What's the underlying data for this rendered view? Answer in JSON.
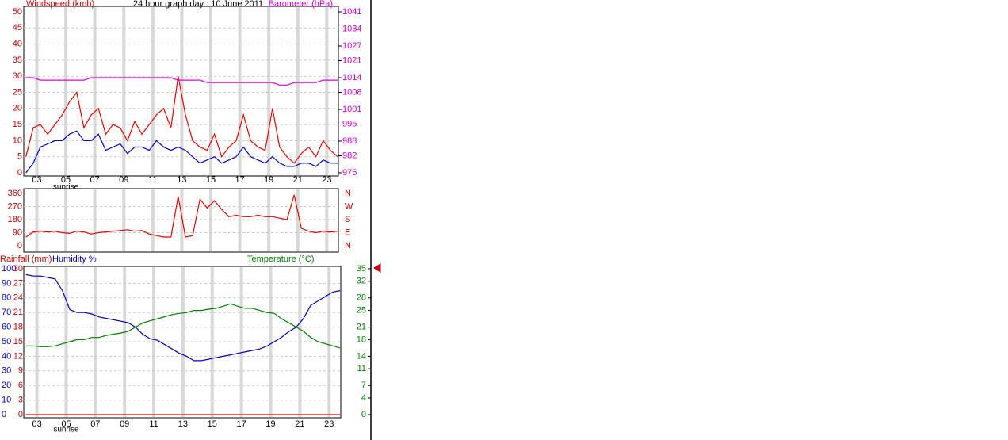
{
  "chart_data": [
    {
      "type": "line",
      "title": "24 hour graph day : 10 June 2011",
      "annotation": "sunrise",
      "x": [
        2.25,
        2.75,
        3.25,
        3.75,
        4.25,
        4.75,
        5.25,
        5.75,
        6.25,
        6.75,
        7.25,
        7.75,
        8.25,
        8.75,
        9.25,
        9.75,
        10.25,
        10.75,
        11.25,
        11.75,
        12.25,
        12.75,
        13.25,
        13.75,
        14.25,
        14.75,
        15.25,
        15.75,
        16.25,
        16.75,
        17.25,
        17.75,
        18.25,
        18.75,
        19.25,
        19.75,
        20.25,
        20.75,
        21.25,
        21.75,
        22.25,
        22.75,
        23.25,
        23.75
      ],
      "xlim": [
        2.1,
        23.8
      ],
      "xticks": [
        {
          "value": 3,
          "label": "03"
        },
        {
          "value": 5,
          "label": "05"
        },
        {
          "value": 7,
          "label": "07"
        },
        {
          "value": 9,
          "label": "09"
        },
        {
          "value": 11,
          "label": "11"
        },
        {
          "value": 13,
          "label": "13"
        },
        {
          "value": 15,
          "label": "15"
        },
        {
          "value": 17,
          "label": "17"
        },
        {
          "value": 19,
          "label": "19"
        },
        {
          "value": 21,
          "label": "21"
        },
        {
          "value": 23,
          "label": "23"
        }
      ],
      "axes": [
        {
          "label": "Windspeed (kmh)",
          "color": "#cc0000",
          "lim": [
            0,
            50
          ],
          "ticks": [
            0,
            5,
            10,
            15,
            20,
            25,
            30,
            35,
            40,
            45,
            50
          ]
        },
        {
          "label": "Barometer (hPa)",
          "color": "#cc00cc",
          "lim": [
            975,
            1041
          ],
          "ticks": [
            975,
            982,
            988,
            995,
            1001,
            1008,
            1014,
            1021,
            1027,
            1034,
            1041
          ]
        }
      ],
      "grid": true,
      "series": [
        {
          "color": "#ee0000",
          "axis": 0,
          "values": [
            5,
            14,
            15,
            12,
            15,
            18,
            22,
            25,
            14,
            18,
            20,
            12,
            15,
            14,
            10,
            16,
            12,
            15,
            18,
            20,
            14,
            30,
            18,
            10,
            8,
            7,
            12,
            5,
            8,
            10,
            18,
            10,
            8,
            7,
            20,
            8,
            5,
            3,
            6,
            8,
            5,
            10,
            7,
            5
          ]
        },
        {
          "color": "#0000cc",
          "axis": 0,
          "values": [
            0,
            3,
            8,
            9,
            10,
            10,
            12,
            13,
            10,
            10,
            12,
            7,
            8,
            9,
            6,
            8,
            8,
            7,
            10,
            8,
            7,
            8,
            7,
            5,
            3,
            4,
            5,
            3,
            4,
            5,
            8,
            5,
            4,
            3,
            5,
            3,
            2,
            2,
            3,
            3,
            2,
            4,
            3,
            3
          ]
        },
        {
          "color": "#dd00dd",
          "axis": 1,
          "values": [
            1014,
            1014,
            1013,
            1013,
            1013,
            1013,
            1013,
            1013,
            1013,
            1014,
            1014,
            1014,
            1014,
            1014,
            1014,
            1014,
            1014,
            1014,
            1014,
            1014,
            1014,
            1013,
            1013,
            1013,
            1013,
            1012,
            1012,
            1012,
            1012,
            1012,
            1012,
            1012,
            1012,
            1012,
            1012,
            1011,
            1011,
            1012,
            1012,
            1012,
            1012,
            1013,
            1013,
            1013
          ]
        }
      ]
    },
    {
      "type": "line",
      "x": [
        2.25,
        2.75,
        3.25,
        3.75,
        4.25,
        4.75,
        5.25,
        5.75,
        6.25,
        6.75,
        7.25,
        7.75,
        8.25,
        8.75,
        9.25,
        9.75,
        10.25,
        10.75,
        11.25,
        11.75,
        12.25,
        12.75,
        13.25,
        13.75,
        14.25,
        14.75,
        15.25,
        15.75,
        16.25,
        16.75,
        17.25,
        17.75,
        18.25,
        18.75,
        19.25,
        19.75,
        20.25,
        20.75,
        21.25,
        21.75,
        22.25,
        22.75,
        23.25,
        23.75
      ],
      "xlim": [
        2.1,
        23.8
      ],
      "axes": [
        {
          "color": "#cc0000",
          "lim": [
            0,
            360
          ],
          "ticks": [
            0,
            90,
            180,
            270,
            360
          ]
        },
        {
          "color": "#cc0000",
          "lim": [
            0,
            360
          ],
          "ticks": [
            {
              "value": 360,
              "label": "N"
            },
            {
              "value": 270,
              "label": "W"
            },
            {
              "value": 180,
              "label": "S"
            },
            {
              "value": 90,
              "label": "E"
            },
            {
              "value": 0,
              "label": "N"
            }
          ]
        }
      ],
      "grid": true,
      "series": [
        {
          "color": "#ee0000",
          "axis": 0,
          "values": [
            60,
            95,
            100,
            95,
            100,
            90,
            85,
            100,
            95,
            80,
            90,
            95,
            100,
            105,
            110,
            100,
            105,
            80,
            70,
            60,
            60,
            340,
            60,
            70,
            320,
            260,
            310,
            250,
            200,
            210,
            200,
            200,
            210,
            200,
            200,
            190,
            180,
            350,
            120,
            100,
            90,
            100,
            95,
            100
          ]
        }
      ]
    },
    {
      "type": "line",
      "annotation": "sunrise",
      "x": [
        2.25,
        2.75,
        3.25,
        3.75,
        4.25,
        4.75,
        5.25,
        5.75,
        6.25,
        6.75,
        7.25,
        7.75,
        8.25,
        8.75,
        9.25,
        9.75,
        10.25,
        10.75,
        11.25,
        11.75,
        12.25,
        12.75,
        13.25,
        13.75,
        14.25,
        14.75,
        15.25,
        15.75,
        16.25,
        16.75,
        17.25,
        17.75,
        18.25,
        18.75,
        19.25,
        19.75,
        20.25,
        20.75,
        21.25,
        21.75,
        22.25,
        22.75,
        23.25,
        23.75
      ],
      "xlim": [
        2.1,
        23.8
      ],
      "xticks": [
        {
          "value": 3,
          "label": "03"
        },
        {
          "value": 5,
          "label": "05"
        },
        {
          "value": 7,
          "label": "07"
        },
        {
          "value": 9,
          "label": "09"
        },
        {
          "value": 11,
          "label": "11"
        },
        {
          "value": 13,
          "label": "13"
        },
        {
          "value": 15,
          "label": "15"
        },
        {
          "value": 17,
          "label": "17"
        },
        {
          "value": 19,
          "label": "19"
        },
        {
          "value": 21,
          "label": "21"
        },
        {
          "value": 23,
          "label": "23"
        }
      ],
      "axes": [
        {
          "label": "Humidity %",
          "color": "#0000cc",
          "lim": [
            0,
            100
          ],
          "ticks": [
            0,
            10,
            20,
            30,
            40,
            50,
            60,
            70,
            80,
            90,
            100
          ]
        },
        {
          "label": "Rainfall (mm)",
          "color": "#cc0000",
          "lim": [
            0,
            30
          ],
          "ticks": [
            0,
            3,
            6,
            9,
            12,
            15,
            18,
            21,
            24,
            27,
            30
          ]
        },
        {
          "label": "Temperature (°C)",
          "color": "#008000",
          "lim": [
            0,
            35
          ],
          "ticks": [
            0,
            4,
            7,
            11,
            14,
            18,
            21,
            25,
            28,
            32,
            35
          ]
        }
      ],
      "grid": true,
      "series": [
        {
          "color": "#0000cc",
          "axis": 0,
          "values": [
            96,
            95,
            95,
            94,
            93,
            85,
            72,
            70,
            70,
            69,
            67,
            66,
            65,
            64,
            63,
            60,
            55,
            52,
            51,
            48,
            45,
            42,
            40,
            37,
            37,
            38,
            39,
            40,
            41,
            42,
            43,
            44,
            45,
            47,
            50,
            53,
            57,
            60,
            66,
            75,
            78,
            81,
            84,
            85
          ]
        },
        {
          "color": "#ee0000",
          "axis": 1,
          "values": [
            0,
            0,
            0,
            0,
            0,
            0,
            0,
            0,
            0,
            0,
            0,
            0,
            0,
            0,
            0,
            0,
            0,
            0,
            0,
            0,
            0,
            0,
            0,
            0,
            0,
            0,
            0,
            0,
            0,
            0,
            0,
            0,
            0,
            0,
            0,
            0,
            0,
            0,
            0,
            0,
            0,
            0,
            0,
            0
          ]
        },
        {
          "color": "#008000",
          "axis": 2,
          "values": [
            16.5,
            16.5,
            16.3,
            16.3,
            16.5,
            17,
            17.5,
            18,
            18,
            18.5,
            18.5,
            19,
            19.3,
            19.6,
            20,
            21,
            22,
            22.5,
            23,
            23.5,
            24,
            24.3,
            24.5,
            25,
            25,
            25.3,
            25.5,
            26,
            26.6,
            26,
            25.5,
            25.5,
            25,
            24.5,
            24.3,
            23,
            22,
            21,
            20,
            18.5,
            17.5,
            17,
            16.5,
            16
          ]
        }
      ]
    }
  ]
}
